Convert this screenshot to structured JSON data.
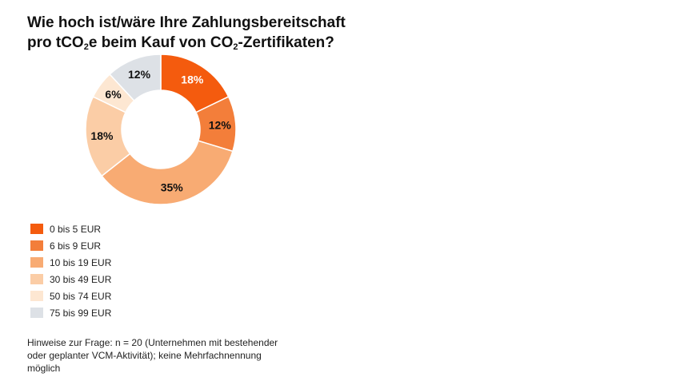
{
  "chart_data": {
    "type": "pie",
    "title": {
      "line1": "Wie hoch ist/wäre Ihre Zahlungsbereitschaft",
      "line2_prefix": "pro tCO",
      "line2_sub1": "2",
      "line2_mid": "e beim Kauf von CO",
      "line2_sub2": "2",
      "line2_suffix": "-Zertifikaten?"
    },
    "categories": [
      "0 bis 5 EUR",
      "6 bis 9 EUR",
      "10 bis 19 EUR",
      "30 bis 49 EUR",
      "50 bis 74 EUR",
      "75 bis 99 EUR"
    ],
    "values": [
      18,
      12,
      35,
      18,
      6,
      12
    ],
    "labels": [
      "18%",
      "12%",
      "35%",
      "18%",
      "6%",
      "12%"
    ],
    "colors": [
      "#f45b0e",
      "#f37e3a",
      "#f8ab73",
      "#fbcda6",
      "#fde7d2",
      "#dde1e6"
    ],
    "label_colors": [
      "#ffffff",
      "#111111",
      "#111111",
      "#111111",
      "#111111",
      "#111111"
    ],
    "legend_position": "bottom-left"
  },
  "note": "Hinweise zur Frage: n = 20 (Unternehmen mit bestehender oder geplanter VCM-Aktivität); keine Mehrfachnennung möglich"
}
